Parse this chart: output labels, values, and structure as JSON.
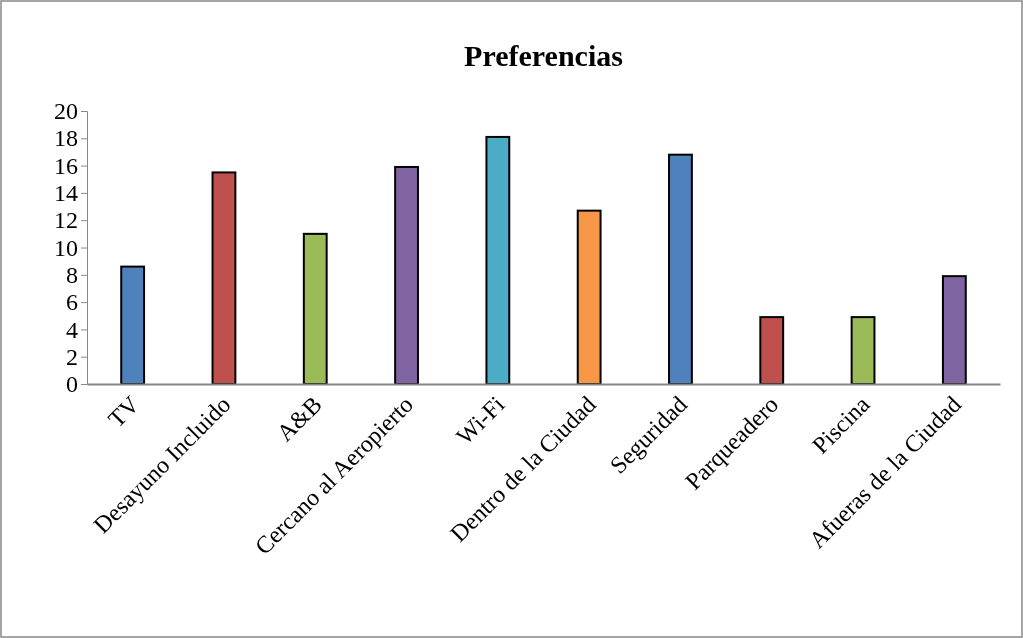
{
  "chart_data": {
    "type": "bar",
    "title": "Preferencias",
    "categories": [
      "TV",
      "Desayuno Incluido",
      "A&B",
      "Cercano al Aeropierto",
      "Wi-Fi",
      "Dentro de la Ciudad",
      "Seguridad",
      "Parqueadero",
      "Piscina",
      "Afueras de la Ciudad"
    ],
    "values": [
      8.6,
      15.5,
      11,
      15.9,
      18.1,
      12.7,
      16.8,
      4.9,
      4.9,
      7.9
    ],
    "colors": [
      "#4f81bd",
      "#c0504d",
      "#9bbb59",
      "#8064a2",
      "#4bacc6",
      "#f79646",
      "#4f81bd",
      "#c0504d",
      "#9bbb59",
      "#8064a2"
    ],
    "ylim": [
      0,
      20
    ],
    "yticks": [
      0,
      2,
      4,
      6,
      8,
      10,
      12,
      14,
      16,
      18,
      20
    ],
    "grid": false
  }
}
